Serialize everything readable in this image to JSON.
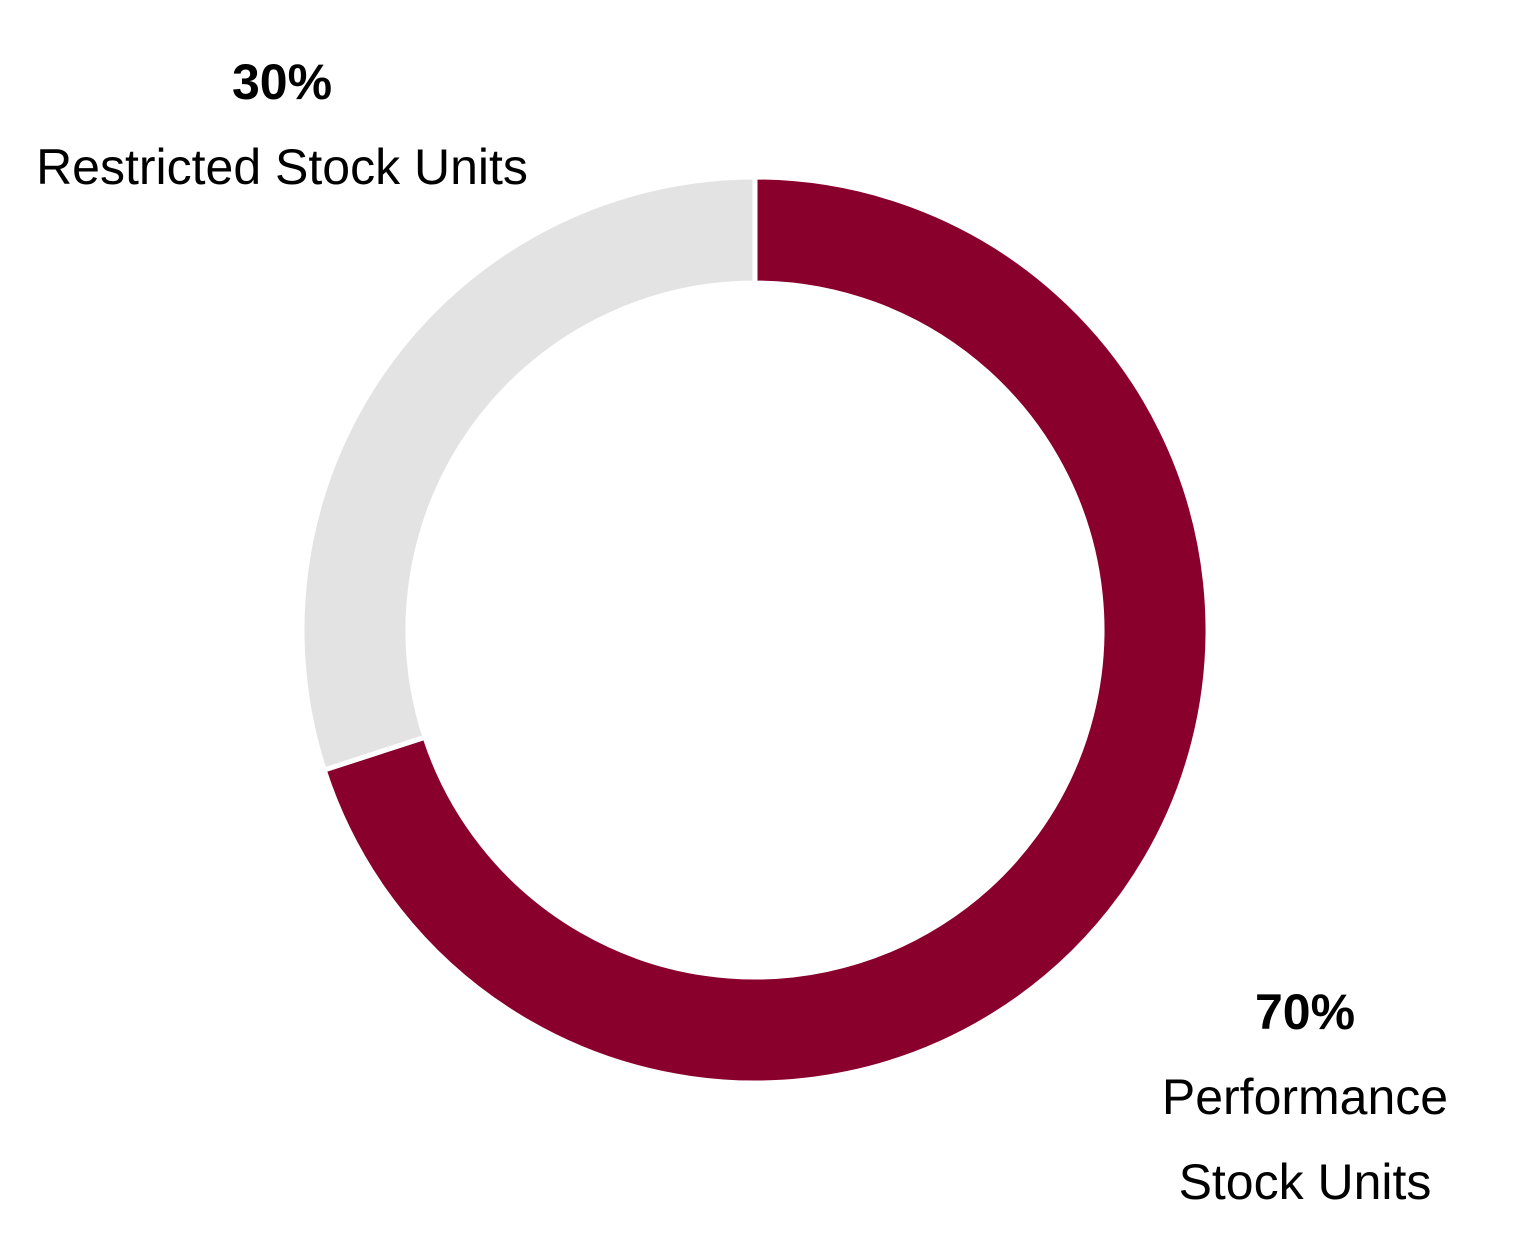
{
  "chart_data": {
    "type": "donut",
    "categories": [
      "Performance Stock Units",
      "Restricted Stock Units"
    ],
    "values": [
      70,
      30
    ],
    "value_labels": [
      "70%",
      "30%"
    ],
    "colors": [
      "#8a002c",
      "#e3e3e3"
    ]
  }
}
